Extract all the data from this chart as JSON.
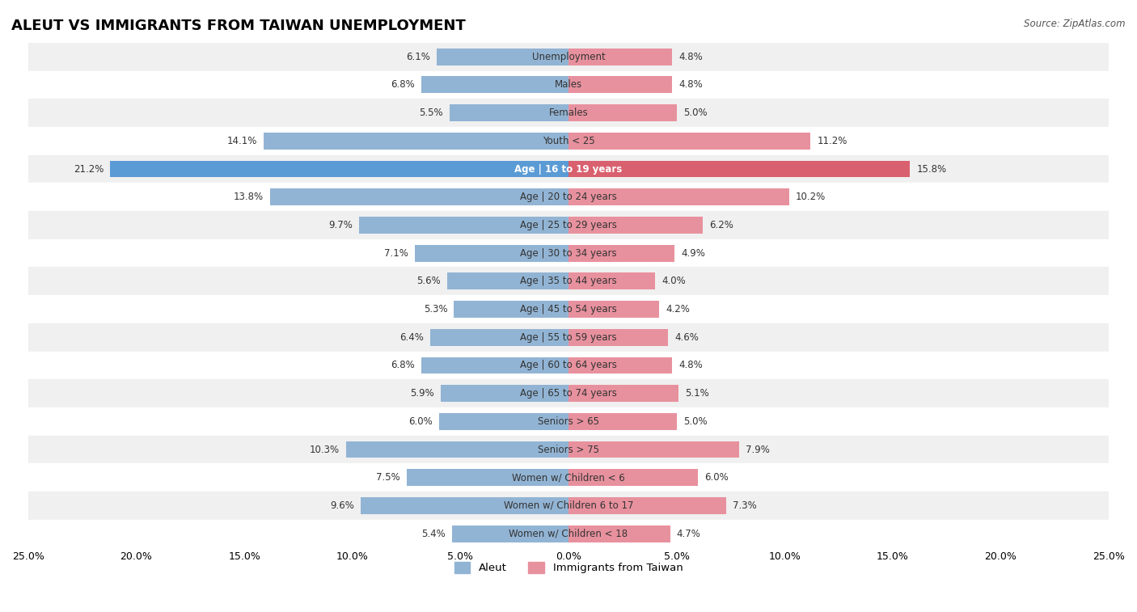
{
  "title": "ALEUT VS IMMIGRANTS FROM TAIWAN UNEMPLOYMENT",
  "source": "Source: ZipAtlas.com",
  "categories": [
    "Unemployment",
    "Males",
    "Females",
    "Youth < 25",
    "Age | 16 to 19 years",
    "Age | 20 to 24 years",
    "Age | 25 to 29 years",
    "Age | 30 to 34 years",
    "Age | 35 to 44 years",
    "Age | 45 to 54 years",
    "Age | 55 to 59 years",
    "Age | 60 to 64 years",
    "Age | 65 to 74 years",
    "Seniors > 65",
    "Seniors > 75",
    "Women w/ Children < 6",
    "Women w/ Children 6 to 17",
    "Women w/ Children < 18"
  ],
  "aleut_values": [
    6.1,
    6.8,
    5.5,
    14.1,
    21.2,
    13.8,
    9.7,
    7.1,
    5.6,
    5.3,
    6.4,
    6.8,
    5.9,
    6.0,
    10.3,
    7.5,
    9.6,
    5.4
  ],
  "taiwan_values": [
    4.8,
    4.8,
    5.0,
    11.2,
    15.8,
    10.2,
    6.2,
    4.9,
    4.0,
    4.2,
    4.6,
    4.8,
    5.1,
    5.0,
    7.9,
    6.0,
    7.3,
    4.7
  ],
  "aleut_color": "#92b4d4",
  "taiwan_color": "#e8919e",
  "aleut_highlight_color": "#5b9bd5",
  "taiwan_highlight_color": "#d9606e",
  "highlight_index": 4,
  "xlim": 25.0,
  "bar_height": 0.6,
  "bg_color_odd": "#f0f0f0",
  "bg_color_even": "#ffffff",
  "legend_aleut": "Aleut",
  "legend_taiwan": "Immigrants from Taiwan"
}
